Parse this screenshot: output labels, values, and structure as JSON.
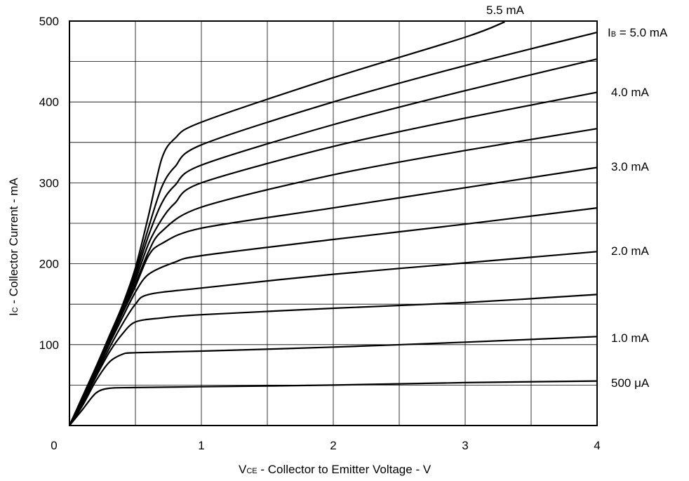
{
  "chart_data": {
    "type": "line",
    "title": "",
    "xlabel": {
      "main": "V",
      "sub": "CE",
      "rest": " -  Collector to Emitter Voltage  - V"
    },
    "ylabel": {
      "main": "I",
      "sub": "C",
      "rest": " -  Collector Current  - mA"
    },
    "xlim": [
      0,
      4
    ],
    "ylim": [
      0,
      500
    ],
    "x_ticks": [
      0,
      1,
      2,
      3,
      4
    ],
    "x_tick_labels": [
      "0",
      "1",
      "2",
      "3",
      "4"
    ],
    "y_ticks": [
      100,
      200,
      300,
      400,
      500
    ],
    "y_tick_labels": [
      "100",
      "200",
      "300",
      "400",
      "500"
    ],
    "grid": true,
    "line_color": "#000000",
    "curve_labels": {
      "ib5": {
        "main": "I",
        "sub": "B",
        "rest": " = 5.0 mA"
      },
      "ib55": "5.5 mA",
      "ib4": "4.0 mA",
      "ib3": "3.0 mA",
      "ib2": "2.0 mA",
      "ib1": "1.0 mA",
      "ib05": "500 μA"
    },
    "series": [
      {
        "name": "500 μA",
        "x": [
          0,
          0.1,
          0.2,
          0.3,
          0.5,
          1,
          2,
          3,
          4
        ],
        "y": [
          0,
          20,
          40,
          46,
          47,
          48,
          50,
          53,
          55
        ]
      },
      {
        "x": [
          0,
          0.1,
          0.2,
          0.3,
          0.4,
          0.5,
          1,
          2,
          3,
          4
        ],
        "y": [
          0,
          25,
          55,
          78,
          88,
          90,
          92,
          97,
          103,
          110
        ]
      },
      {
        "name": "1.0 mA",
        "x": [
          0,
          0.1,
          0.2,
          0.3,
          0.4,
          0.5,
          0.7,
          1,
          2,
          3,
          4
        ],
        "y": [
          0,
          28,
          60,
          90,
          113,
          128,
          133,
          137,
          145,
          152,
          162
        ]
      },
      {
        "x": [
          0,
          0.1,
          0.2,
          0.3,
          0.4,
          0.5,
          0.6,
          1,
          2,
          3,
          4
        ],
        "y": [
          0,
          30,
          63,
          95,
          125,
          150,
          162,
          170,
          187,
          201,
          215
        ]
      },
      {
        "name": "2.0 mA",
        "x": [
          0,
          0.1,
          0.2,
          0.3,
          0.4,
          0.5,
          0.6,
          0.8,
          1,
          2,
          3,
          4
        ],
        "y": [
          0,
          32,
          66,
          100,
          133,
          165,
          187,
          202,
          210,
          230,
          249,
          269
        ]
      },
      {
        "x": [
          0,
          0.1,
          0.2,
          0.3,
          0.4,
          0.5,
          0.6,
          0.7,
          1,
          2,
          3,
          4
        ],
        "y": [
          0,
          33,
          68,
          103,
          138,
          172,
          210,
          225,
          244,
          269,
          294,
          319
        ]
      },
      {
        "name": "3.0 mA",
        "x": [
          0,
          0.1,
          0.2,
          0.3,
          0.4,
          0.5,
          0.6,
          0.7,
          1,
          2,
          3,
          4
        ],
        "y": [
          0,
          34,
          69,
          105,
          140,
          175,
          215,
          240,
          270,
          310,
          340,
          367
        ]
      },
      {
        "x": [
          0,
          0.1,
          0.2,
          0.3,
          0.4,
          0.5,
          0.6,
          0.7,
          0.8,
          1,
          2,
          3,
          4
        ],
        "y": [
          0,
          35,
          70,
          106,
          142,
          180,
          225,
          255,
          275,
          300,
          345,
          380,
          412
        ]
      },
      {
        "name": "4.0 mA",
        "x": [
          0,
          0.1,
          0.2,
          0.3,
          0.4,
          0.5,
          0.6,
          0.7,
          0.8,
          1,
          2,
          3,
          4
        ],
        "y": [
          0,
          35,
          71,
          107,
          143,
          185,
          235,
          275,
          297,
          322,
          372,
          414,
          453
        ]
      },
      {
        "name": "5.0 mA",
        "x": [
          0,
          0.1,
          0.2,
          0.3,
          0.4,
          0.5,
          0.6,
          0.7,
          0.8,
          1,
          2,
          3,
          4
        ],
        "y": [
          0,
          36,
          72,
          108,
          145,
          190,
          245,
          295,
          320,
          347,
          400,
          445,
          486
        ]
      },
      {
        "name": "5.5 mA",
        "x": [
          0,
          0.1,
          0.2,
          0.3,
          0.4,
          0.5,
          0.6,
          0.7,
          0.8,
          1,
          2,
          3,
          3.3
        ],
        "y": [
          0,
          36,
          72,
          110,
          148,
          195,
          260,
          330,
          355,
          375,
          430,
          480,
          499
        ]
      }
    ]
  }
}
